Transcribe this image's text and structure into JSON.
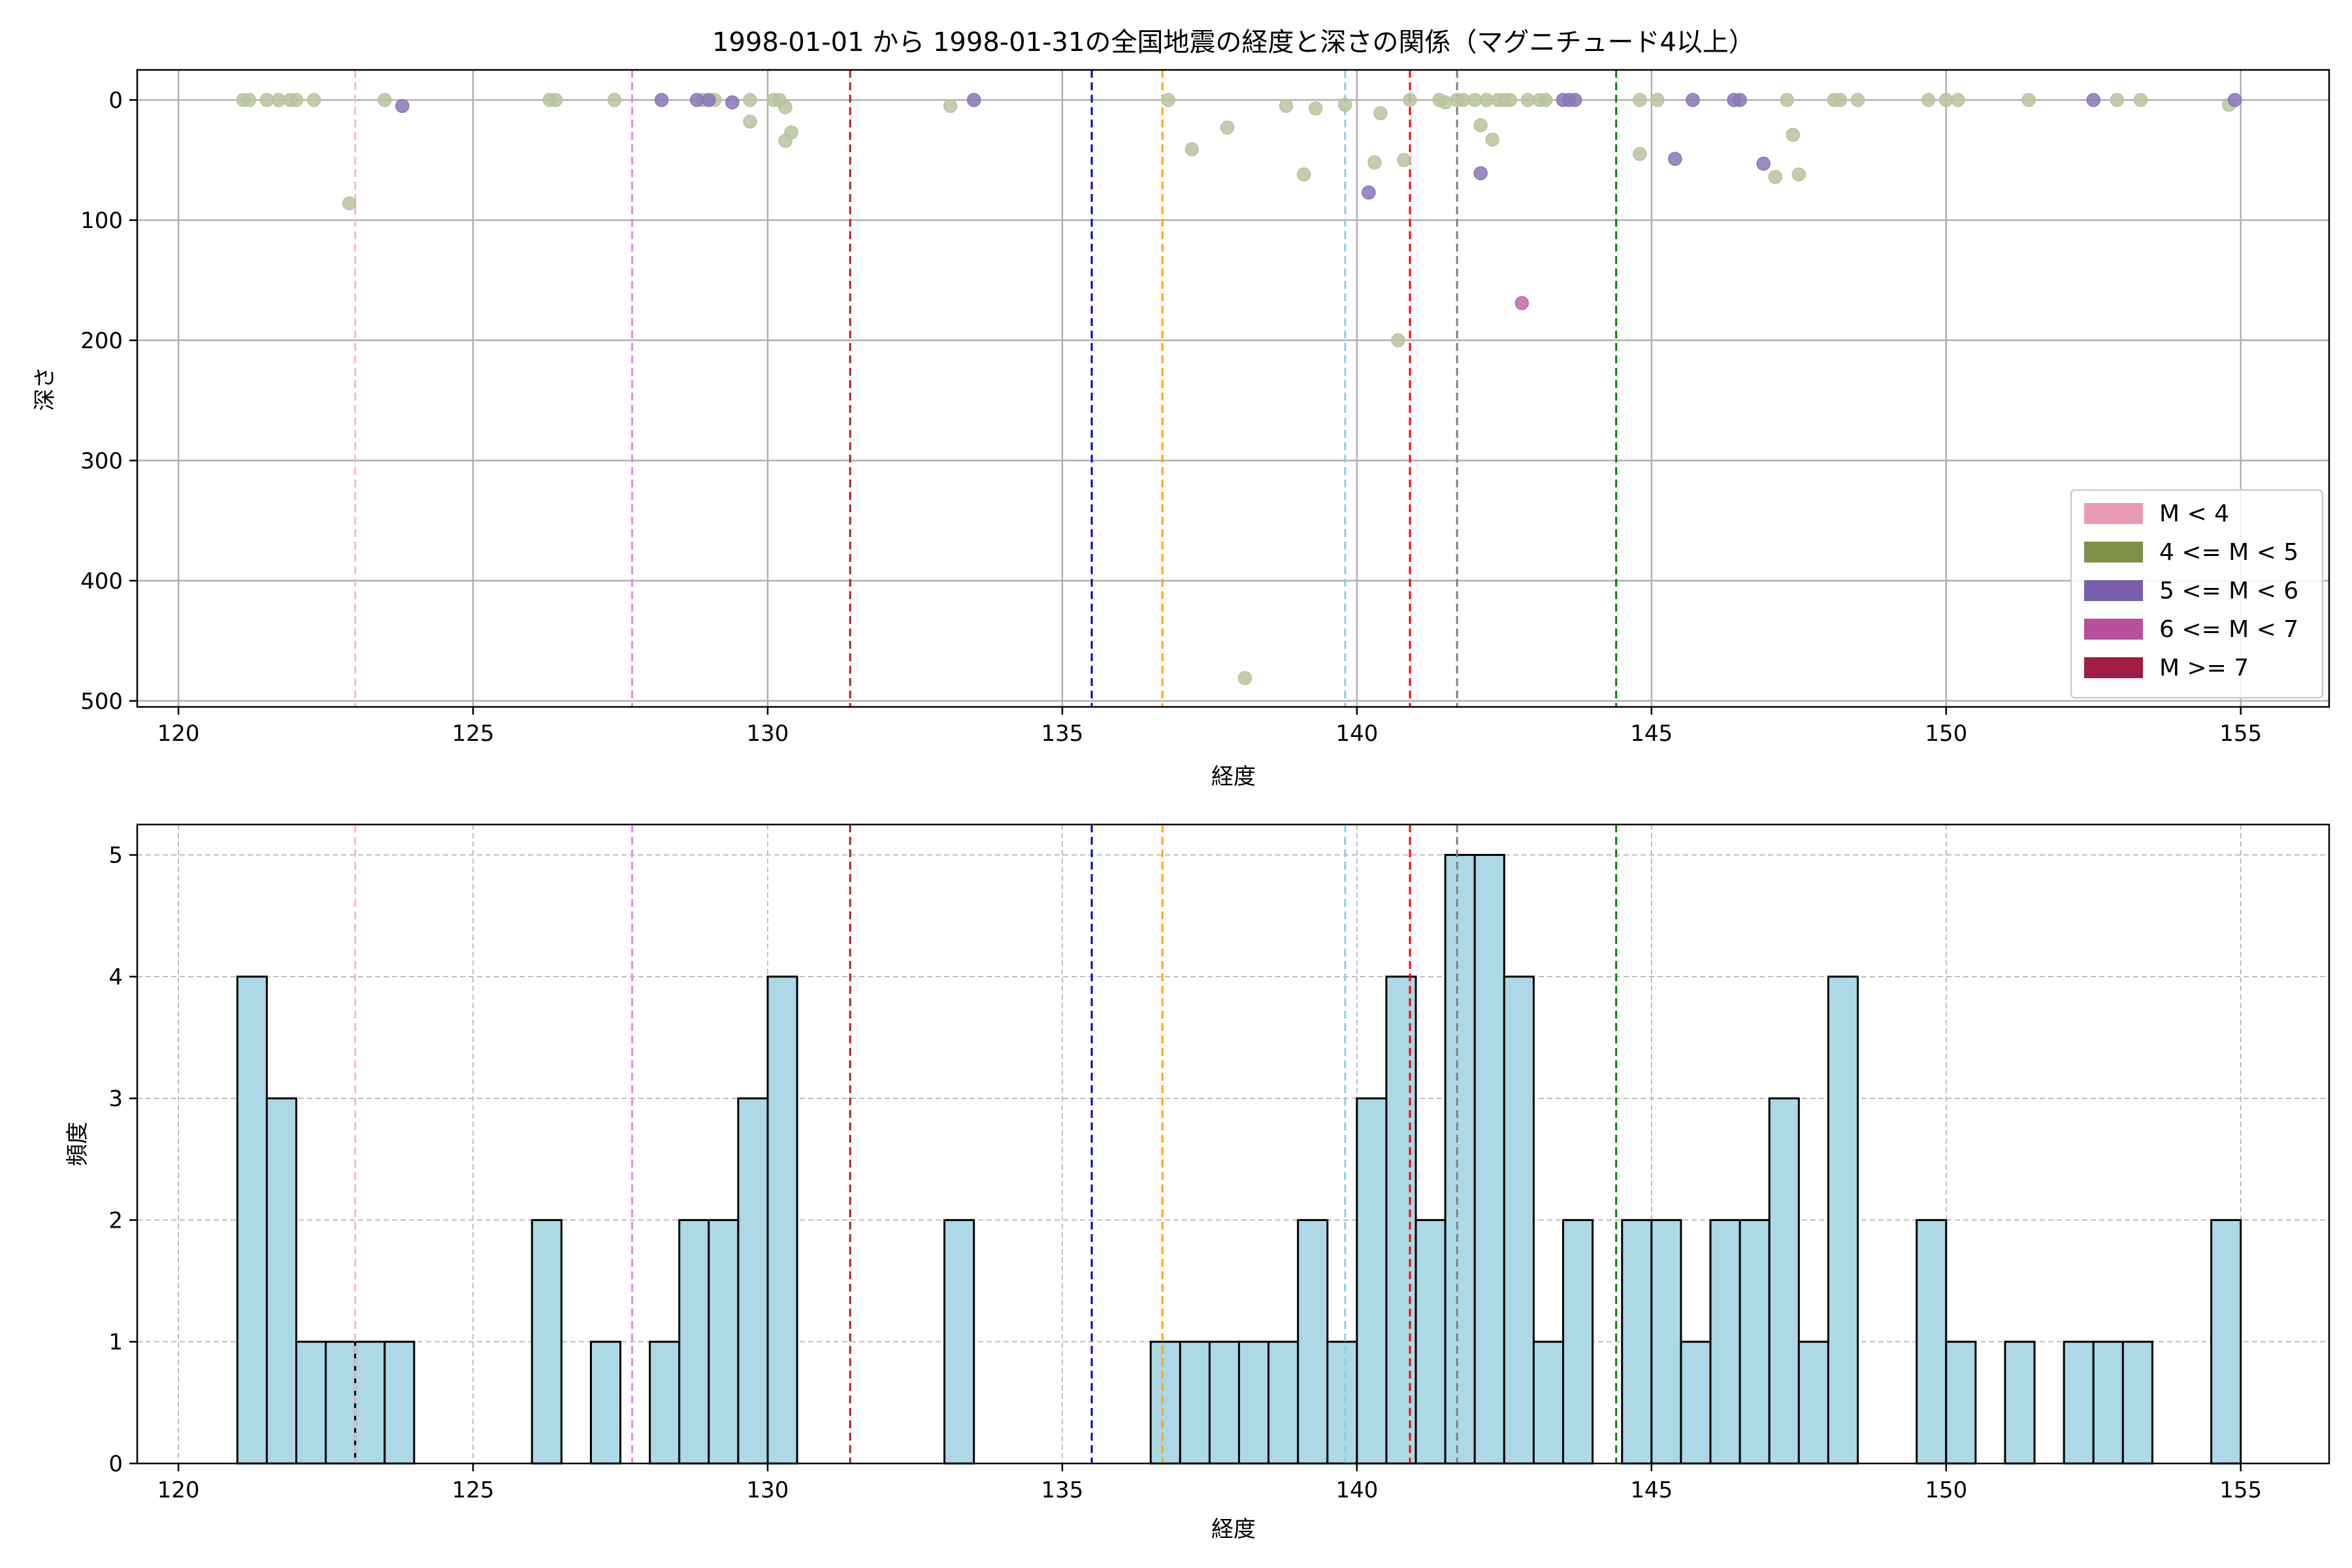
{
  "chart_data": [
    {
      "type": "scatter",
      "title": "1998-01-01 から 1998-01-31の全国地震の経度と深さの関係（マグニチュード4以上）",
      "xlabel": "経度",
      "ylabel": "深さ",
      "xlim": [
        119.3,
        156.5
      ],
      "ylim": [
        505,
        -25
      ],
      "y_inverted": true,
      "grid": true,
      "xticks": [
        120,
        125,
        130,
        135,
        140,
        145,
        150,
        155
      ],
      "yticks": [
        0,
        100,
        200,
        300,
        400,
        500
      ],
      "legend": {
        "placement": "lower-right",
        "entries": [
          {
            "label": "M < 4",
            "color": "#e79ab2"
          },
          {
            "label": "4 <= M < 5",
            "color": "#7f8f47"
          },
          {
            "label": "5 <= M < 6",
            "color": "#765eab"
          },
          {
            "label": "6 <= M < 7",
            "color": "#b84f9e"
          },
          {
            "label": "M >= 7",
            "color": "#a01d43"
          }
        ]
      },
      "point_colors": {
        "M4": "#b9c39c",
        "M5": "#8a75b8",
        "M6": "#c26aa8"
      },
      "series": [
        {
          "class": "M4",
          "points": [
            [
              121.1,
              0
            ],
            [
              121.2,
              0
            ],
            [
              121.5,
              0
            ],
            [
              121.7,
              0
            ],
            [
              121.9,
              0
            ],
            [
              122.0,
              0
            ],
            [
              122.3,
              0
            ],
            [
              122.9,
              86
            ],
            [
              123.5,
              0
            ],
            [
              126.3,
              0
            ],
            [
              126.4,
              0
            ],
            [
              127.4,
              0
            ],
            [
              128.9,
              0
            ],
            [
              129.1,
              0
            ],
            [
              129.7,
              0
            ],
            [
              129.7,
              18
            ],
            [
              130.1,
              0
            ],
            [
              130.2,
              0
            ],
            [
              130.3,
              6
            ],
            [
              130.3,
              34
            ],
            [
              130.4,
              27
            ],
            [
              133.1,
              5
            ],
            [
              136.8,
              0
            ],
            [
              137.2,
              41
            ],
            [
              137.8,
              23
            ],
            [
              138.8,
              5
            ],
            [
              139.1,
              62
            ],
            [
              139.3,
              7
            ],
            [
              139.8,
              4
            ],
            [
              140.3,
              52
            ],
            [
              140.4,
              11
            ],
            [
              140.7,
              200
            ],
            [
              140.8,
              50
            ],
            [
              140.9,
              0
            ],
            [
              141.4,
              0
            ],
            [
              141.5,
              2
            ],
            [
              141.7,
              0
            ],
            [
              141.8,
              0
            ],
            [
              142.0,
              0
            ],
            [
              142.1,
              21
            ],
            [
              142.2,
              0
            ],
            [
              142.3,
              33
            ],
            [
              142.4,
              0
            ],
            [
              142.5,
              0
            ],
            [
              142.6,
              0
            ],
            [
              142.9,
              0
            ],
            [
              143.1,
              0
            ],
            [
              143.2,
              0
            ],
            [
              144.8,
              0
            ],
            [
              144.8,
              45
            ],
            [
              145.1,
              0
            ],
            [
              147.1,
              64
            ],
            [
              147.3,
              0
            ],
            [
              147.4,
              29
            ],
            [
              147.5,
              62
            ],
            [
              148.1,
              0
            ],
            [
              148.2,
              0
            ],
            [
              148.5,
              0
            ],
            [
              149.7,
              0
            ],
            [
              150.0,
              0
            ],
            [
              150.2,
              0
            ],
            [
              151.4,
              0
            ],
            [
              152.9,
              0
            ],
            [
              153.3,
              0
            ],
            [
              154.8,
              4
            ],
            [
              138.1,
              481
            ]
          ]
        },
        {
          "class": "M5",
          "points": [
            [
              123.8,
              5
            ],
            [
              128.2,
              0
            ],
            [
              128.8,
              0
            ],
            [
              129.0,
              0
            ],
            [
              129.4,
              2
            ],
            [
              133.5,
              0
            ],
            [
              140.2,
              77
            ],
            [
              142.1,
              61
            ],
            [
              143.5,
              0
            ],
            [
              143.6,
              0
            ],
            [
              143.7,
              0
            ],
            [
              145.4,
              49
            ],
            [
              145.7,
              0
            ],
            [
              146.4,
              0
            ],
            [
              146.5,
              0
            ],
            [
              146.9,
              53
            ],
            [
              152.5,
              0
            ],
            [
              154.9,
              0
            ]
          ]
        },
        {
          "class": "M6",
          "points": [
            [
              142.8,
              169
            ]
          ]
        }
      ],
      "reference_lines": [
        {
          "x": 123.0,
          "color": "#ffb6c1"
        },
        {
          "x": 127.7,
          "color": "#ee82ee"
        },
        {
          "x": 131.4,
          "color": "#b22222"
        },
        {
          "x": 135.5,
          "color": "#0000cd"
        },
        {
          "x": 136.7,
          "color": "#ffa500"
        },
        {
          "x": 139.8,
          "color": "#87ceeb"
        },
        {
          "x": 140.9,
          "color": "#ff0000"
        },
        {
          "x": 141.7,
          "color": "#808080"
        },
        {
          "x": 144.4,
          "color": "#008000"
        }
      ]
    },
    {
      "type": "bar",
      "title": "",
      "xlabel": "経度",
      "ylabel": "頻度",
      "xlim": [
        119.3,
        156.5
      ],
      "ylim": [
        0,
        5.25
      ],
      "grid": true,
      "xticks": [
        120,
        125,
        130,
        135,
        140,
        145,
        150,
        155
      ],
      "yticks": [
        0,
        1,
        2,
        3,
        4,
        5
      ],
      "bin_width": 0.5,
      "bars": [
        [
          121,
          4
        ],
        [
          121.5,
          3
        ],
        [
          122,
          1
        ],
        [
          122.5,
          1
        ],
        [
          123,
          1
        ],
        [
          123.5,
          1
        ],
        [
          126,
          2
        ],
        [
          127,
          1
        ],
        [
          128,
          1
        ],
        [
          128.5,
          2
        ],
        [
          129,
          2
        ],
        [
          129.5,
          3
        ],
        [
          130,
          4
        ],
        [
          133,
          2
        ],
        [
          136.5,
          1
        ],
        [
          137,
          1
        ],
        [
          137.5,
          1
        ],
        [
          138,
          1
        ],
        [
          138.5,
          1
        ],
        [
          139,
          2
        ],
        [
          139.5,
          1
        ],
        [
          140,
          3
        ],
        [
          140.5,
          4
        ],
        [
          141,
          2
        ],
        [
          141.5,
          5
        ],
        [
          142,
          5
        ],
        [
          142.5,
          4
        ],
        [
          143,
          1
        ],
        [
          143.5,
          2
        ],
        [
          144.5,
          2
        ],
        [
          145,
          2
        ],
        [
          145.5,
          1
        ],
        [
          146,
          2
        ],
        [
          146.5,
          2
        ],
        [
          147,
          3
        ],
        [
          147.5,
          1
        ],
        [
          148,
          4
        ],
        [
          149.5,
          2
        ],
        [
          150,
          1
        ],
        [
          151,
          1
        ],
        [
          152,
          1
        ],
        [
          152.5,
          1
        ],
        [
          153,
          1
        ],
        [
          154.5,
          2
        ]
      ],
      "reference_lines": [
        {
          "x": 123.0,
          "color": "#ffb6c1"
        },
        {
          "x": 127.7,
          "color": "#ee82ee"
        },
        {
          "x": 131.4,
          "color": "#b22222"
        },
        {
          "x": 135.5,
          "color": "#0000cd"
        },
        {
          "x": 136.7,
          "color": "#ffa500"
        },
        {
          "x": 139.8,
          "color": "#87ceeb"
        },
        {
          "x": 140.9,
          "color": "#ff0000"
        },
        {
          "x": 141.7,
          "color": "#808080"
        },
        {
          "x": 144.4,
          "color": "#008000"
        }
      ]
    }
  ]
}
